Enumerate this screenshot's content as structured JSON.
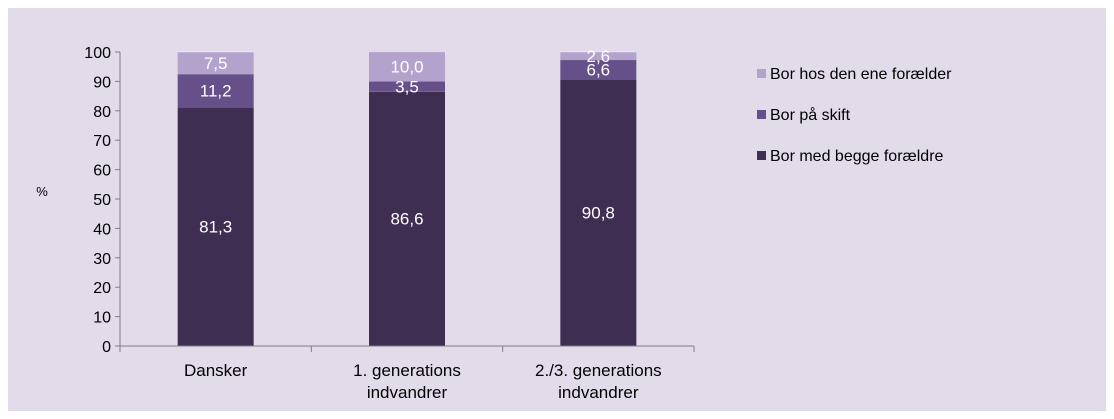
{
  "chart_data": {
    "type": "bar",
    "stacked": true,
    "categories": [
      [
        "Dansker"
      ],
      [
        "1. generations",
        "indvandrer"
      ],
      [
        "2./3. generations",
        "indvandrer"
      ]
    ],
    "series": [
      {
        "name": "Bor med begge forældre",
        "values": [
          "81,3",
          "86,6",
          "90,8"
        ],
        "numeric": [
          81.3,
          86.6,
          90.8
        ],
        "color": "#3e2e52"
      },
      {
        "name": "Bor på skift",
        "values": [
          "11,2",
          "3,5",
          "6,6"
        ],
        "numeric": [
          11.2,
          3.5,
          6.6
        ],
        "color": "#65508a"
      },
      {
        "name": "Bor hos den ene forælder",
        "values": [
          "7,5",
          "10,0",
          "2,6"
        ],
        "numeric": [
          7.5,
          10.0,
          2.6
        ],
        "color": "#b3a3cc"
      }
    ],
    "ylabel": "%",
    "ylim": [
      0,
      100
    ],
    "yticks": [
      "0",
      "10",
      "20",
      "30",
      "40",
      "50",
      "60",
      "70",
      "80",
      "90",
      "100"
    ],
    "legend_position": "right",
    "grid": false
  },
  "colors": {
    "background": "#e2dcea",
    "axis": "#7f7f7f",
    "text": "#000000",
    "data_label": "#ffffff"
  }
}
